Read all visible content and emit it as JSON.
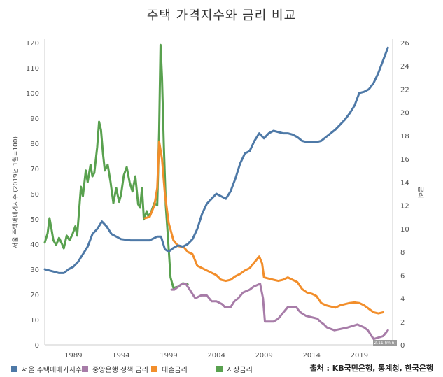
{
  "title": "주택 가격지수와 금리 비교",
  "chart_data": {
    "type": "line",
    "xlabel": "",
    "y_left_label": "서울 주택매매가지수 (2019년 1월=100)",
    "y_right_label": "금리",
    "x_range": [
      1986,
      2022.5
    ],
    "x_ticks": [
      "1989",
      "1994",
      "1999",
      "2004",
      "2009",
      "2014",
      "2019"
    ],
    "y_left_range": [
      0,
      120
    ],
    "y_left_ticks": [
      "0",
      "10",
      "20",
      "30",
      "40",
      "50",
      "60",
      "70",
      "80",
      "90",
      "100",
      "110",
      "120"
    ],
    "y_right_range": [
      0,
      26
    ],
    "y_right_ticks": [
      "0",
      "2",
      "4",
      "6",
      "8",
      "10",
      "12",
      "14",
      "16",
      "18",
      "20",
      "22",
      "24",
      "26"
    ],
    "annotation": "2.11 (min)",
    "series": [
      {
        "name": "서울 주택매매가지수",
        "axis": "left",
        "color": "#4e79a7",
        "points": [
          [
            1986.0,
            30
          ],
          [
            1986.5,
            29.5
          ],
          [
            1987.0,
            29
          ],
          [
            1987.5,
            28.5
          ],
          [
            1988.0,
            28.5
          ],
          [
            1988.5,
            30
          ],
          [
            1989.0,
            31
          ],
          [
            1989.5,
            33
          ],
          [
            1990.0,
            36
          ],
          [
            1990.5,
            39
          ],
          [
            1991.0,
            44
          ],
          [
            1991.5,
            46
          ],
          [
            1992.0,
            49
          ],
          [
            1992.5,
            47
          ],
          [
            1993.0,
            44
          ],
          [
            1993.5,
            43
          ],
          [
            1994.0,
            42
          ],
          [
            1995.0,
            41.5
          ],
          [
            1996.0,
            41.5
          ],
          [
            1997.0,
            41.5
          ],
          [
            1997.8,
            43
          ],
          [
            1998.2,
            43
          ],
          [
            1998.6,
            38
          ],
          [
            1999.0,
            37
          ],
          [
            1999.5,
            38.5
          ],
          [
            2000.0,
            39.5
          ],
          [
            2000.5,
            39
          ],
          [
            2001.0,
            40
          ],
          [
            2001.5,
            42
          ],
          [
            2002.0,
            46
          ],
          [
            2002.5,
            52
          ],
          [
            2003.0,
            56
          ],
          [
            2003.5,
            58
          ],
          [
            2004.0,
            60
          ],
          [
            2004.5,
            59
          ],
          [
            2005.0,
            58
          ],
          [
            2005.5,
            61
          ],
          [
            2006.0,
            66
          ],
          [
            2006.5,
            72
          ],
          [
            2007.0,
            76
          ],
          [
            2007.5,
            77
          ],
          [
            2008.0,
            81
          ],
          [
            2008.5,
            84
          ],
          [
            2009.0,
            82
          ],
          [
            2009.5,
            84
          ],
          [
            2010.0,
            85
          ],
          [
            2010.5,
            84.5
          ],
          [
            2011.0,
            84
          ],
          [
            2011.5,
            84
          ],
          [
            2012.0,
            83.5
          ],
          [
            2012.5,
            82.5
          ],
          [
            2013.0,
            81
          ],
          [
            2013.5,
            80.5
          ],
          [
            2014.0,
            80.5
          ],
          [
            2014.5,
            80.5
          ],
          [
            2015.0,
            81
          ],
          [
            2015.5,
            82.5
          ],
          [
            2016.0,
            84
          ],
          [
            2016.5,
            85.5
          ],
          [
            2017.0,
            87.5
          ],
          [
            2017.5,
            89.5
          ],
          [
            2018.0,
            92
          ],
          [
            2018.5,
            95
          ],
          [
            2019.0,
            100
          ],
          [
            2019.5,
            100.5
          ],
          [
            2020.0,
            101.5
          ],
          [
            2020.5,
            104
          ],
          [
            2021.0,
            108
          ],
          [
            2021.5,
            113
          ],
          [
            2022.0,
            118
          ]
        ]
      },
      {
        "name": "중앙은행 정책 금리",
        "axis": "right",
        "color": "#a77ca8",
        "points": [
          [
            1999.3,
            4.75
          ],
          [
            1999.6,
            4.75
          ],
          [
            2000.0,
            5.0
          ],
          [
            2000.4,
            5.25
          ],
          [
            2000.8,
            5.25
          ],
          [
            2001.2,
            4.75
          ],
          [
            2001.6,
            4.25
          ],
          [
            2001.8,
            4.0
          ],
          [
            2002.4,
            4.25
          ],
          [
            2003.0,
            4.25
          ],
          [
            2003.5,
            3.75
          ],
          [
            2004.0,
            3.75
          ],
          [
            2004.6,
            3.5
          ],
          [
            2004.9,
            3.25
          ],
          [
            2005.5,
            3.25
          ],
          [
            2005.9,
            3.75
          ],
          [
            2006.3,
            4.0
          ],
          [
            2006.8,
            4.5
          ],
          [
            2007.5,
            4.75
          ],
          [
            2007.9,
            5.0
          ],
          [
            2008.6,
            5.25
          ],
          [
            2008.9,
            4.0
          ],
          [
            2009.1,
            2.0
          ],
          [
            2010.0,
            2.0
          ],
          [
            2010.5,
            2.25
          ],
          [
            2011.0,
            2.75
          ],
          [
            2011.5,
            3.25
          ],
          [
            2012.4,
            3.25
          ],
          [
            2012.6,
            3.0
          ],
          [
            2012.9,
            2.75
          ],
          [
            2013.4,
            2.5
          ],
          [
            2014.6,
            2.25
          ],
          [
            2014.9,
            2.0
          ],
          [
            2015.3,
            1.75
          ],
          [
            2015.6,
            1.5
          ],
          [
            2016.4,
            1.25
          ],
          [
            2017.8,
            1.5
          ],
          [
            2018.8,
            1.75
          ],
          [
            2019.5,
            1.5
          ],
          [
            2019.9,
            1.25
          ],
          [
            2020.3,
            0.75
          ],
          [
            2020.5,
            0.5
          ],
          [
            2021.5,
            0.75
          ],
          [
            2022.0,
            1.25
          ]
        ]
      },
      {
        "name": "대출금리",
        "axis": "right",
        "color": "#f28e2b",
        "points": [
          [
            1996.5,
            10.9
          ],
          [
            1997.0,
            11.0
          ],
          [
            1997.5,
            12.0
          ],
          [
            1997.8,
            13.5
          ],
          [
            1998.0,
            17.5
          ],
          [
            1998.3,
            16.0
          ],
          [
            1998.6,
            13.0
          ],
          [
            1999.0,
            10.5
          ],
          [
            1999.5,
            9.0
          ],
          [
            2000.0,
            8.5
          ],
          [
            2000.6,
            8.4
          ],
          [
            2001.0,
            8.0
          ],
          [
            2001.5,
            7.8
          ],
          [
            2002.0,
            6.8
          ],
          [
            2002.5,
            6.6
          ],
          [
            2003.0,
            6.4
          ],
          [
            2003.5,
            6.2
          ],
          [
            2004.0,
            6.0
          ],
          [
            2004.5,
            5.6
          ],
          [
            2005.0,
            5.5
          ],
          [
            2005.5,
            5.6
          ],
          [
            2006.0,
            5.9
          ],
          [
            2006.5,
            6.1
          ],
          [
            2007.0,
            6.4
          ],
          [
            2007.5,
            6.6
          ],
          [
            2008.0,
            7.1
          ],
          [
            2008.5,
            7.6
          ],
          [
            2008.8,
            7.0
          ],
          [
            2009.0,
            5.8
          ],
          [
            2009.5,
            5.7
          ],
          [
            2010.0,
            5.6
          ],
          [
            2010.5,
            5.5
          ],
          [
            2011.0,
            5.6
          ],
          [
            2011.5,
            5.8
          ],
          [
            2012.0,
            5.6
          ],
          [
            2012.5,
            5.4
          ],
          [
            2013.0,
            4.8
          ],
          [
            2013.5,
            4.5
          ],
          [
            2014.0,
            4.4
          ],
          [
            2014.5,
            4.2
          ],
          [
            2015.0,
            3.6
          ],
          [
            2015.5,
            3.4
          ],
          [
            2016.0,
            3.3
          ],
          [
            2016.5,
            3.2
          ],
          [
            2017.0,
            3.4
          ],
          [
            2017.5,
            3.5
          ],
          [
            2018.0,
            3.6
          ],
          [
            2018.5,
            3.65
          ],
          [
            2019.0,
            3.6
          ],
          [
            2019.5,
            3.4
          ],
          [
            2020.0,
            3.1
          ],
          [
            2020.5,
            2.8
          ],
          [
            2021.0,
            2.7
          ],
          [
            2021.5,
            2.8
          ]
        ]
      },
      {
        "name": "시장금리",
        "axis": "right",
        "color": "#59a14f",
        "points": [
          [
            1986.0,
            8.8
          ],
          [
            1986.3,
            9.6
          ],
          [
            1986.5,
            10.9
          ],
          [
            1986.7,
            10.0
          ],
          [
            1986.9,
            9.0
          ],
          [
            1987.2,
            8.6
          ],
          [
            1987.5,
            9.2
          ],
          [
            1987.8,
            8.7
          ],
          [
            1988.0,
            8.3
          ],
          [
            1988.3,
            9.4
          ],
          [
            1988.6,
            9.0
          ],
          [
            1988.9,
            9.5
          ],
          [
            1989.2,
            10.2
          ],
          [
            1989.4,
            9.4
          ],
          [
            1989.6,
            11.5
          ],
          [
            1989.8,
            13.6
          ],
          [
            1990.0,
            12.8
          ],
          [
            1990.3,
            15.0
          ],
          [
            1990.5,
            14.0
          ],
          [
            1990.8,
            15.5
          ],
          [
            1991.0,
            14.5
          ],
          [
            1991.2,
            14.8
          ],
          [
            1991.5,
            17.0
          ],
          [
            1991.7,
            19.2
          ],
          [
            1991.9,
            18.5
          ],
          [
            1992.1,
            16.5
          ],
          [
            1992.3,
            15.0
          ],
          [
            1992.6,
            15.5
          ],
          [
            1992.9,
            14.0
          ],
          [
            1993.2,
            12.2
          ],
          [
            1993.5,
            13.5
          ],
          [
            1993.8,
            12.3
          ],
          [
            1994.0,
            12.9
          ],
          [
            1994.3,
            14.6
          ],
          [
            1994.6,
            15.3
          ],
          [
            1994.9,
            14.0
          ],
          [
            1995.2,
            13.2
          ],
          [
            1995.5,
            14.5
          ],
          [
            1995.8,
            12.1
          ],
          [
            1996.0,
            11.8
          ],
          [
            1996.2,
            13.5
          ],
          [
            1996.4,
            10.8
          ],
          [
            1996.7,
            11.5
          ],
          [
            1996.9,
            11.0
          ],
          [
            1997.2,
            11.5
          ],
          [
            1997.5,
            12.2
          ],
          [
            1997.8,
            12.0
          ],
          [
            1998.0,
            18.4
          ],
          [
            1998.15,
            25.8
          ],
          [
            1998.3,
            23.0
          ],
          [
            1998.5,
            17.0
          ],
          [
            1998.7,
            12.0
          ],
          [
            1998.9,
            9.5
          ],
          [
            1999.2,
            5.8
          ],
          [
            1999.5,
            4.9
          ],
          [
            2000.0,
            5.0
          ],
          [
            2000.5,
            5.3
          ],
          [
            2001.0,
            5.2
          ]
        ]
      }
    ],
    "legend": [
      "서울 주택매매가지수",
      "중앙은행 정책 금리",
      "대출금리",
      "시장금리"
    ],
    "legend_placement": "bottom"
  },
  "source": "출처 : KB국민은행, 통계청, 한국은행"
}
